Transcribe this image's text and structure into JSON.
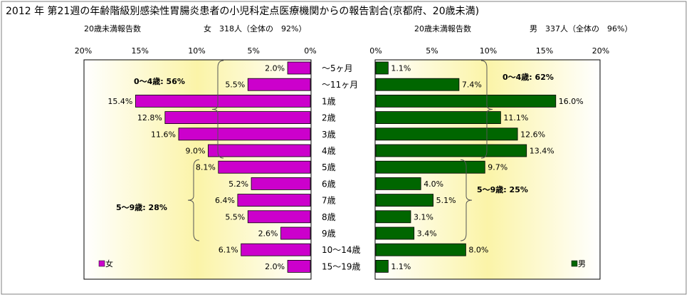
{
  "title": "2012 年 第21週の年齢階級別感染性胃腸炎患者の小児科定点医療機関からの報告割合(京都府、20歳未満)",
  "colors": {
    "female": "#cc00cc",
    "male": "#006600",
    "bg_light": "#ffffff",
    "bg_dark": "#fbf4a8",
    "frame": "#000000"
  },
  "female_panel": {
    "header_left": "20歳未満報告数",
    "header_right": "女　318人（全体の　92%）",
    "legend": "女",
    "bracket_labels": [
      "0～4歳: 56%",
      "5～9歳: 28%"
    ]
  },
  "male_panel": {
    "header_left": "20歳未満報告数",
    "header_right": "男　337人（全体の　96%）",
    "legend": "男",
    "bracket_labels": [
      "0～4歳: 62%",
      "5～9歳: 25%"
    ]
  },
  "chart_data": {
    "type": "bar",
    "orientation": "horizontal",
    "categories": [
      "～5ヶ月",
      "～11ヶ月",
      "1歳",
      "2歳",
      "3歳",
      "4歳",
      "5歳",
      "6歳",
      "7歳",
      "8歳",
      "9歳",
      "10～14歳",
      "15～19歳"
    ],
    "series": [
      {
        "name": "女",
        "values": [
          2.0,
          5.5,
          15.4,
          12.8,
          11.6,
          9.0,
          8.1,
          5.2,
          6.4,
          5.5,
          2.6,
          6.1,
          2.0
        ],
        "direction": "leftward"
      },
      {
        "name": "男",
        "values": [
          1.1,
          7.4,
          16.0,
          11.1,
          12.6,
          13.4,
          9.7,
          4.0,
          5.1,
          3.1,
          3.4,
          8.0,
          1.1
        ],
        "direction": "rightward"
      }
    ],
    "xlim": [
      0,
      20
    ],
    "female_ticks": [
      "20%",
      "15%",
      "10%",
      "5%",
      "0%"
    ],
    "male_ticks": [
      "0%",
      "5%",
      "10%",
      "15%",
      "20%"
    ],
    "bracket_groups": [
      {
        "range": [
          "～5ヶ月",
          "4歳"
        ]
      },
      {
        "range": [
          "5歳",
          "9歳"
        ]
      }
    ]
  }
}
